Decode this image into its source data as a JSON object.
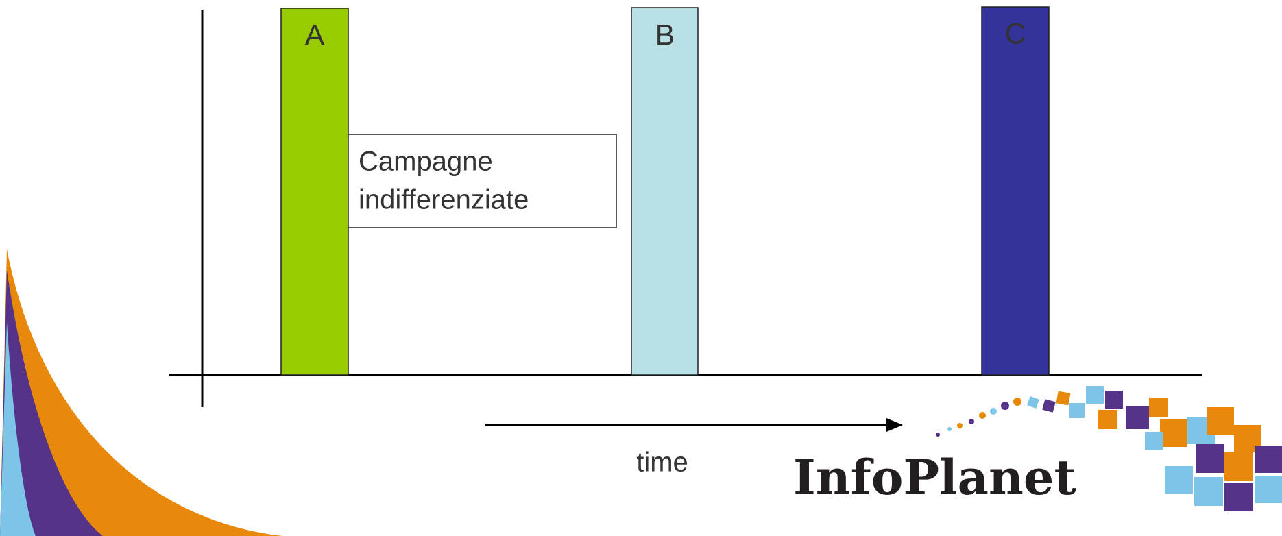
{
  "bars": [
    {
      "label": "A"
    },
    {
      "label": "B"
    },
    {
      "label": "C"
    }
  ],
  "note": {
    "lines": [
      "Campagne",
      "indifferenziate"
    ]
  },
  "axis_label": "time",
  "logo": "InfoPlanet"
}
